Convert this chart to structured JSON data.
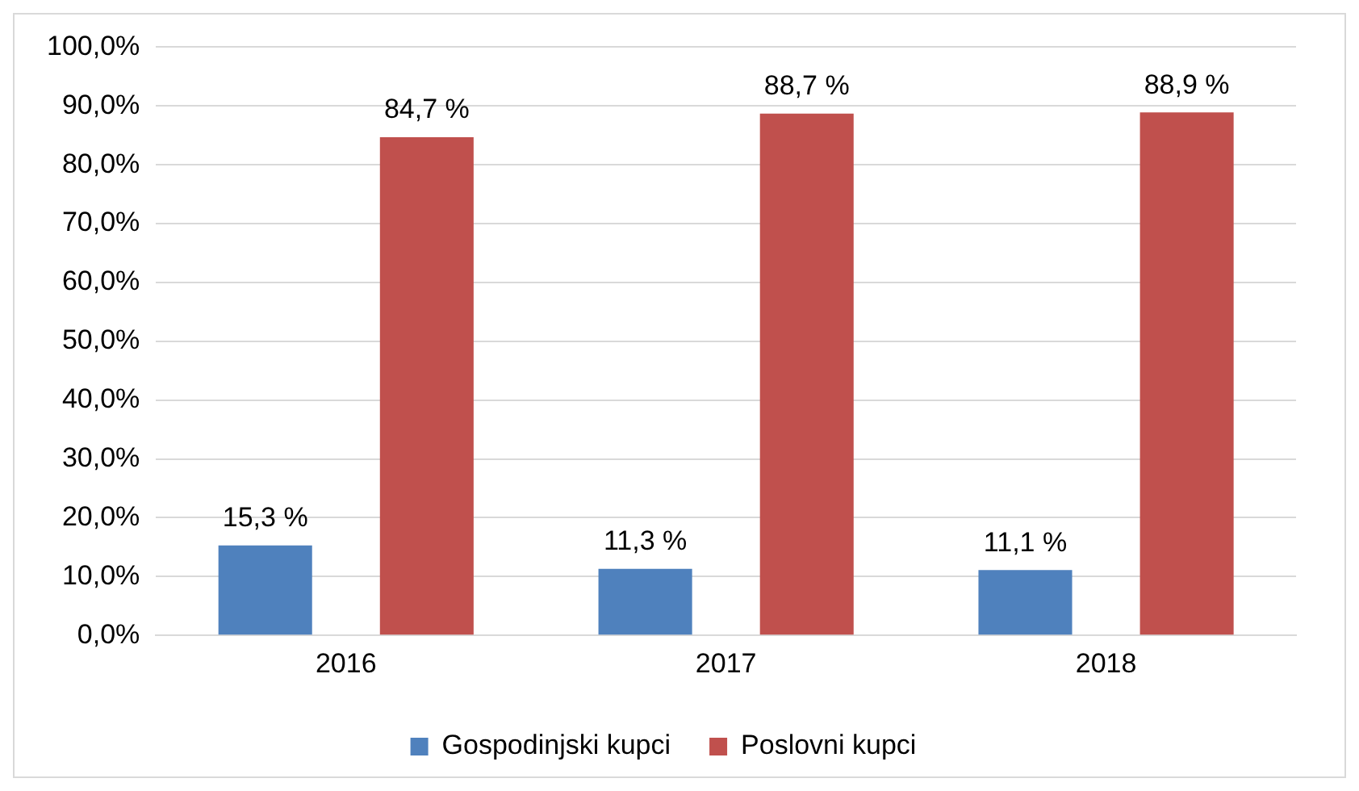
{
  "chart_data": {
    "type": "bar",
    "categories": [
      "2016",
      "2017",
      "2018"
    ],
    "series": [
      {
        "name": "Gospodinjski kupci",
        "color": "#4f81bd",
        "values": [
          15.3,
          11.3,
          11.1
        ],
        "value_labels": [
          "15,3 %",
          "11,3 %",
          "11,1 %"
        ]
      },
      {
        "name": "Poslovni kupci",
        "color": "#c0504d",
        "values": [
          84.7,
          88.7,
          88.9
        ],
        "value_labels": [
          "84,7 %",
          "88,7 %",
          "88,9 %"
        ]
      }
    ],
    "ylim": [
      0,
      100
    ],
    "yticks": [
      {
        "value": 0,
        "label": "0,0%"
      },
      {
        "value": 10,
        "label": "10,0%"
      },
      {
        "value": 20,
        "label": "20,0%"
      },
      {
        "value": 30,
        "label": "30,0%"
      },
      {
        "value": 40,
        "label": "40,0%"
      },
      {
        "value": 50,
        "label": "50,0%"
      },
      {
        "value": 60,
        "label": "60,0%"
      },
      {
        "value": 70,
        "label": "70,0%"
      },
      {
        "value": 80,
        "label": "80,0%"
      },
      {
        "value": 90,
        "label": "90,0%"
      },
      {
        "value": 100,
        "label": "100,0%"
      }
    ],
    "grid": "y",
    "legend": "bottom"
  }
}
